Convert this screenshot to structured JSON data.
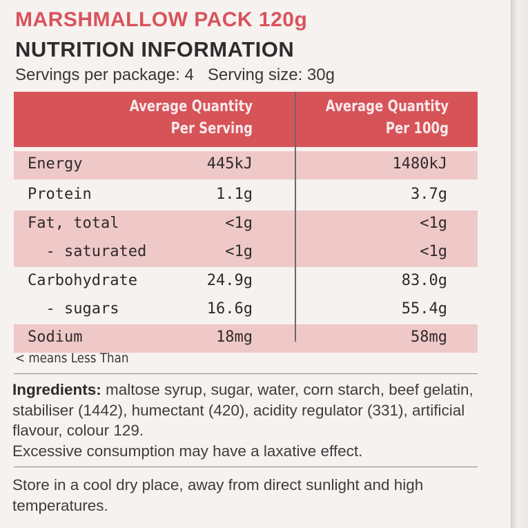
{
  "header": {
    "product_title": "MARSHMALLOW PACK 120g",
    "heading": "NUTRITION INFORMATION",
    "servings_per_package": "Servings per package: 4",
    "serving_size": "Serving size: 30g"
  },
  "table": {
    "col1_header": "Average Quantity\nPer Serving",
    "col2_header": "Average Quantity\nPer 100g",
    "rows": [
      {
        "name": "Energy",
        "per_serving": "445kJ",
        "per_100g": "1480kJ",
        "shaded": true
      },
      {
        "name": "Protein",
        "per_serving": "1.1g",
        "per_100g": "3.7g",
        "shaded": false
      },
      {
        "name": "Fat, total",
        "per_serving": "<1g",
        "per_100g": "<1g",
        "shaded": true
      },
      {
        "name": "  - saturated",
        "per_serving": "<1g",
        "per_100g": "<1g",
        "shaded": true
      },
      {
        "name": "Carbohydrate",
        "per_serving": "24.9g",
        "per_100g": "83.0g",
        "shaded": false
      },
      {
        "name": "  - sugars",
        "per_serving": "16.6g",
        "per_100g": "55.4g",
        "shaded": false
      },
      {
        "name": "Sodium",
        "per_serving": "18mg",
        "per_100g": "58mg",
        "shaded": true
      }
    ],
    "header_color": "#d65358",
    "shade_color": "#efc8c8"
  },
  "note": "< means Less Than",
  "ingredients": {
    "label": "Ingredients:",
    "text": " maltose syrup, sugar, water, corn starch, beef gelatin, stabiliser (1442), humectant (420), acidity regulator (331), artificial flavour, colour 129.",
    "warning": "Excessive consumption may have a laxative effect."
  },
  "storage": "Store in a cool dry place, away from direct sunlight and high temperatures.",
  "colors": {
    "accent": "#d9535c",
    "text": "#2f2c2d",
    "background": "#f6f2f0"
  }
}
